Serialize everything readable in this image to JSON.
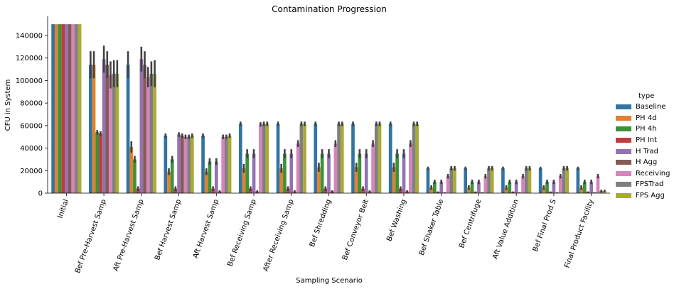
{
  "chart_data": {
    "type": "bar",
    "title": "Contamination Progression",
    "xlabel": "Sampling Scenario",
    "ylabel": "CFU in System",
    "ylim": [
      0,
      157000
    ],
    "yticks": [
      0,
      20000,
      40000,
      60000,
      80000,
      100000,
      120000,
      140000
    ],
    "grid": false,
    "legend_title": "type",
    "legend_position": "right",
    "categories": [
      "Initial",
      "Bef Pre-Harvest Samp",
      "Aft Pre-Harvest Samp",
      "Bef Harvest Samp",
      "Aft Harvest Samp",
      "Bef Receiving Samp",
      "After Receiving Samp",
      "Bef Shredding",
      "Bef Conveyor Belt",
      "Bef Washing",
      "Bef Shaker Table",
      "Bef Centrifuge",
      "Aft Value Addition",
      "Bef Final Prod S",
      "Final Product Facility"
    ],
    "series": [
      {
        "name": "Baseline",
        "color": "#3274a1",
        "values": [
          150000,
          114000,
          114000,
          51000,
          51000,
          61500,
          61500,
          61500,
          61500,
          61500,
          22000,
          22000,
          22000,
          22000,
          22000
        ],
        "errors": [
          0,
          12000,
          12000,
          2000,
          2000,
          2000,
          2000,
          2000,
          2000,
          2000,
          1500,
          1500,
          1500,
          1500,
          1500
        ]
      },
      {
        "name": "PH 4d",
        "color": "#e1812c",
        "values": [
          150000,
          114000,
          41000,
          19000,
          19000,
          22000,
          22000,
          23000,
          23000,
          23000,
          5000,
          5000,
          5000,
          5000,
          5000
        ],
        "errors": [
          0,
          12000,
          5000,
          3000,
          3000,
          4000,
          4000,
          4000,
          4000,
          4000,
          2000,
          2000,
          2000,
          2000,
          2000
        ]
      },
      {
        "name": "PH 4h",
        "color": "#3a923a",
        "values": [
          150000,
          54000,
          30000,
          30000,
          28000,
          35000,
          35000,
          35000,
          35000,
          35000,
          10000,
          10000,
          10000,
          10000,
          10000
        ],
        "errors": [
          0,
          2000,
          3000,
          3000,
          3000,
          4000,
          4000,
          4000,
          4000,
          4000,
          2000,
          2000,
          2000,
          2000,
          2000
        ]
      },
      {
        "name": "PH Int",
        "color": "#c03d3e",
        "values": [
          150000,
          53000,
          4000,
          4000,
          4000,
          4000,
          4000,
          4000,
          4000,
          4000,
          1000,
          1000,
          1000,
          1000,
          1000
        ],
        "errors": [
          0,
          2000,
          2000,
          2000,
          2000,
          2000,
          2000,
          2000,
          2000,
          2000,
          500,
          500,
          500,
          500,
          500
        ]
      },
      {
        "name": "H Trad",
        "color": "#9372b2",
        "values": [
          150000,
          119000,
          119000,
          52000,
          28000,
          35000,
          35000,
          35000,
          35000,
          35000,
          10000,
          10000,
          10000,
          10000,
          10000
        ],
        "errors": [
          0,
          12000,
          11000,
          2000,
          3000,
          4000,
          4000,
          4000,
          4000,
          4000,
          2000,
          2000,
          2000,
          2000,
          2000
        ]
      },
      {
        "name": "H Agg",
        "color": "#845b53",
        "values": [
          150000,
          114000,
          114000,
          51000,
          1500,
          1500,
          1500,
          1500,
          1500,
          1500,
          500,
          500,
          500,
          500,
          500
        ],
        "errors": [
          0,
          12000,
          12000,
          2000,
          1000,
          1000,
          1000,
          1000,
          1000,
          1000,
          300,
          300,
          300,
          300,
          300
        ]
      },
      {
        "name": "Receiving",
        "color": "#d684bd",
        "values": [
          150000,
          105000,
          103000,
          50000,
          50000,
          61000,
          44000,
          44000,
          44000,
          44000,
          15000,
          15000,
          15000,
          15000,
          15000
        ],
        "errors": [
          0,
          12000,
          9000,
          2000,
          2000,
          2000,
          3000,
          3000,
          3000,
          3000,
          2000,
          2000,
          2000,
          2000,
          2000
        ]
      },
      {
        "name": "FPSTrad",
        "color": "#7f7f7f",
        "values": [
          150000,
          106000,
          106000,
          50000,
          50000,
          61500,
          61500,
          61500,
          61500,
          61500,
          22000,
          22000,
          22000,
          22000,
          2000
        ],
        "errors": [
          0,
          12000,
          11000,
          2000,
          2000,
          2000,
          2000,
          2000,
          2000,
          2000,
          2000,
          2000,
          2000,
          2000,
          1000
        ]
      },
      {
        "name": "FPS Agg",
        "color": "#a9aa35",
        "values": [
          150000,
          106000,
          106000,
          51000,
          51000,
          61500,
          61500,
          61500,
          61500,
          61500,
          22000,
          22000,
          22000,
          22000,
          2000
        ],
        "errors": [
          0,
          12000,
          12000,
          2000,
          2000,
          2000,
          2000,
          2000,
          2000,
          2000,
          2000,
          2000,
          2000,
          2000,
          1000
        ]
      }
    ]
  }
}
